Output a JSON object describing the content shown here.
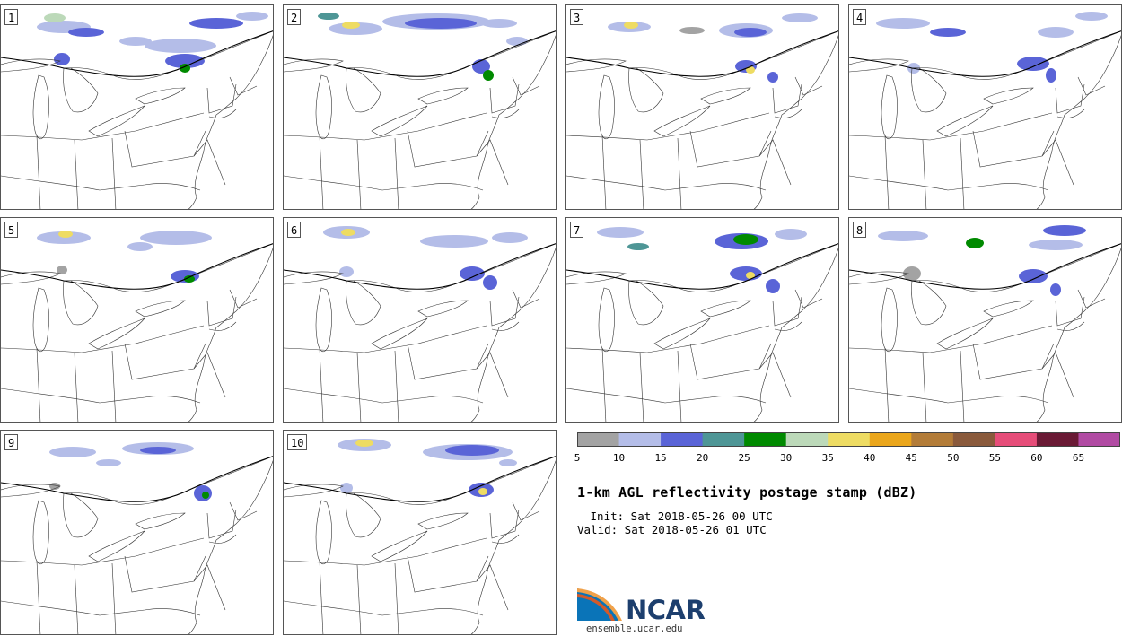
{
  "panels": [
    "1",
    "2",
    "3",
    "4",
    "5",
    "6",
    "7",
    "8",
    "9",
    "10"
  ],
  "colorbar": {
    "ticks": [
      "5",
      "10",
      "15",
      "20",
      "25",
      "30",
      "35",
      "40",
      "45",
      "50",
      "55",
      "60",
      "65"
    ],
    "colors": [
      "#a3a3a3",
      "#b4bde8",
      "#5a64d7",
      "#4e9696",
      "#008a00",
      "#bcd9b9",
      "#eedc63",
      "#eaa61c",
      "#b37c38",
      "#8a5a3c",
      "#e64d79",
      "#6a1a35",
      "#b14ba3"
    ]
  },
  "title": "1-km AGL reflectivity postage stamp (dBZ)",
  "init": " Init: Sat 2018-05-26 00 UTC",
  "valid": "Valid: Sat 2018-05-26 01 UTC",
  "logo": {
    "name": "NCAR",
    "url": "ensemble.ucar.edu"
  }
}
